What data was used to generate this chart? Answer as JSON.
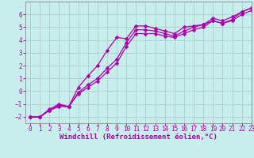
{
  "xlabel": "Windchill (Refroidissement éolien,°C)",
  "ylabel": "",
  "xlim": [
    -0.5,
    23
  ],
  "ylim": [
    -2.5,
    7
  ],
  "xticks": [
    0,
    1,
    2,
    3,
    4,
    5,
    6,
    7,
    8,
    9,
    10,
    11,
    12,
    13,
    14,
    15,
    16,
    17,
    18,
    19,
    20,
    21,
    22,
    23
  ],
  "yticks": [
    -2,
    -1,
    0,
    1,
    2,
    3,
    4,
    5,
    6
  ],
  "background_color": "#c8eded",
  "grid_color": "#b0cccc",
  "line_color": "#aa00aa",
  "line1_x": [
    0,
    1,
    2,
    3,
    4,
    5,
    6,
    7,
    8,
    9,
    10,
    11,
    12,
    13,
    14,
    15,
    16,
    17,
    18,
    19,
    20,
    21,
    22,
    23
  ],
  "line1_y": [
    -2,
    -2,
    -1.5,
    -1.2,
    -1.2,
    0.3,
    1.2,
    2.0,
    3.2,
    4.2,
    4.1,
    5.1,
    5.1,
    4.9,
    4.7,
    4.5,
    5.0,
    5.1,
    5.2,
    5.5,
    5.3,
    5.6,
    6.2,
    6.5
  ],
  "line2_x": [
    0,
    1,
    2,
    3,
    4,
    5,
    6,
    7,
    8,
    9,
    10,
    11,
    12,
    13,
    14,
    15,
    16,
    17,
    18,
    19,
    20,
    21,
    22,
    23
  ],
  "line2_y": [
    -2,
    -2,
    -1.5,
    -1.1,
    -1.2,
    -0.2,
    0.3,
    0.8,
    1.5,
    2.2,
    3.5,
    4.5,
    4.5,
    4.5,
    4.3,
    4.2,
    4.5,
    4.8,
    5.0,
    5.5,
    5.3,
    5.5,
    6.0,
    6.3
  ],
  "line3_x": [
    0,
    1,
    2,
    3,
    4,
    5,
    6,
    7,
    8,
    9,
    10,
    11,
    12,
    13,
    14,
    15,
    16,
    17,
    18,
    19,
    20,
    21,
    22,
    23
  ],
  "line3_y": [
    -2,
    -2,
    -1.4,
    -1.0,
    -1.2,
    -0.1,
    0.5,
    1.0,
    1.8,
    2.5,
    3.8,
    4.8,
    4.8,
    4.7,
    4.5,
    4.3,
    4.7,
    5.0,
    5.2,
    5.7,
    5.5,
    5.8,
    6.2,
    6.5
  ],
  "marker": "D",
  "markersize": 2.5,
  "linewidth": 0.9,
  "tick_labelsize": 5.5,
  "xlabel_fontsize": 6.5
}
